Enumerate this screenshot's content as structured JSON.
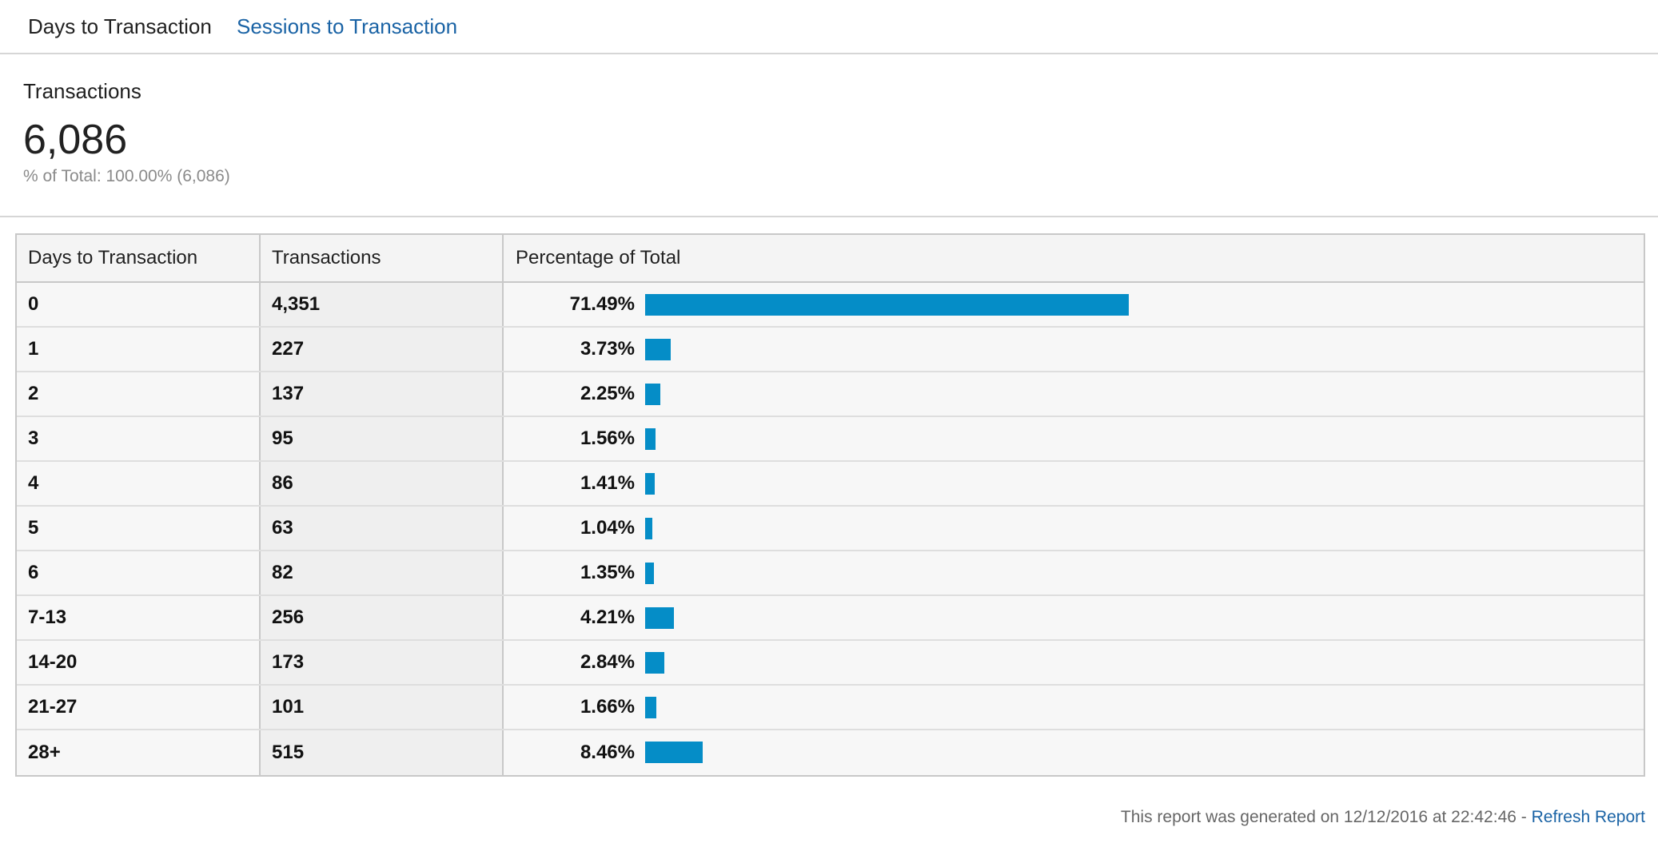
{
  "tabs": {
    "active": "Days to Transaction",
    "other": "Sessions to Transaction"
  },
  "summary": {
    "label": "Transactions",
    "value": "6,086",
    "subtext": "% of Total: 100.00% (6,086)"
  },
  "table": {
    "columns": [
      "Days to Transaction",
      "Transactions",
      "Percentage of Total"
    ],
    "rows": [
      {
        "days": "0",
        "transactions": "4,351",
        "pct_label": "71.49%",
        "pct": 71.49
      },
      {
        "days": "1",
        "transactions": "227",
        "pct_label": "3.73%",
        "pct": 3.73
      },
      {
        "days": "2",
        "transactions": "137",
        "pct_label": "2.25%",
        "pct": 2.25
      },
      {
        "days": "3",
        "transactions": "95",
        "pct_label": "1.56%",
        "pct": 1.56
      },
      {
        "days": "4",
        "transactions": "86",
        "pct_label": "1.41%",
        "pct": 1.41
      },
      {
        "days": "5",
        "transactions": "63",
        "pct_label": "1.04%",
        "pct": 1.04
      },
      {
        "days": "6",
        "transactions": "82",
        "pct_label": "1.35%",
        "pct": 1.35
      },
      {
        "days": "7-13",
        "transactions": "256",
        "pct_label": "4.21%",
        "pct": 4.21
      },
      {
        "days": "14-20",
        "transactions": "173",
        "pct_label": "2.84%",
        "pct": 2.84
      },
      {
        "days": "21-27",
        "transactions": "101",
        "pct_label": "1.66%",
        "pct": 1.66
      },
      {
        "days": "28+",
        "transactions": "515",
        "pct_label": "8.46%",
        "pct": 8.46
      }
    ]
  },
  "footer": {
    "text": "This report was generated on 12/12/2016 at 22:42:46 - ",
    "refresh_label": "Refresh Report"
  },
  "colors": {
    "bar": "#058dc7",
    "link": "#1a63a5"
  }
}
